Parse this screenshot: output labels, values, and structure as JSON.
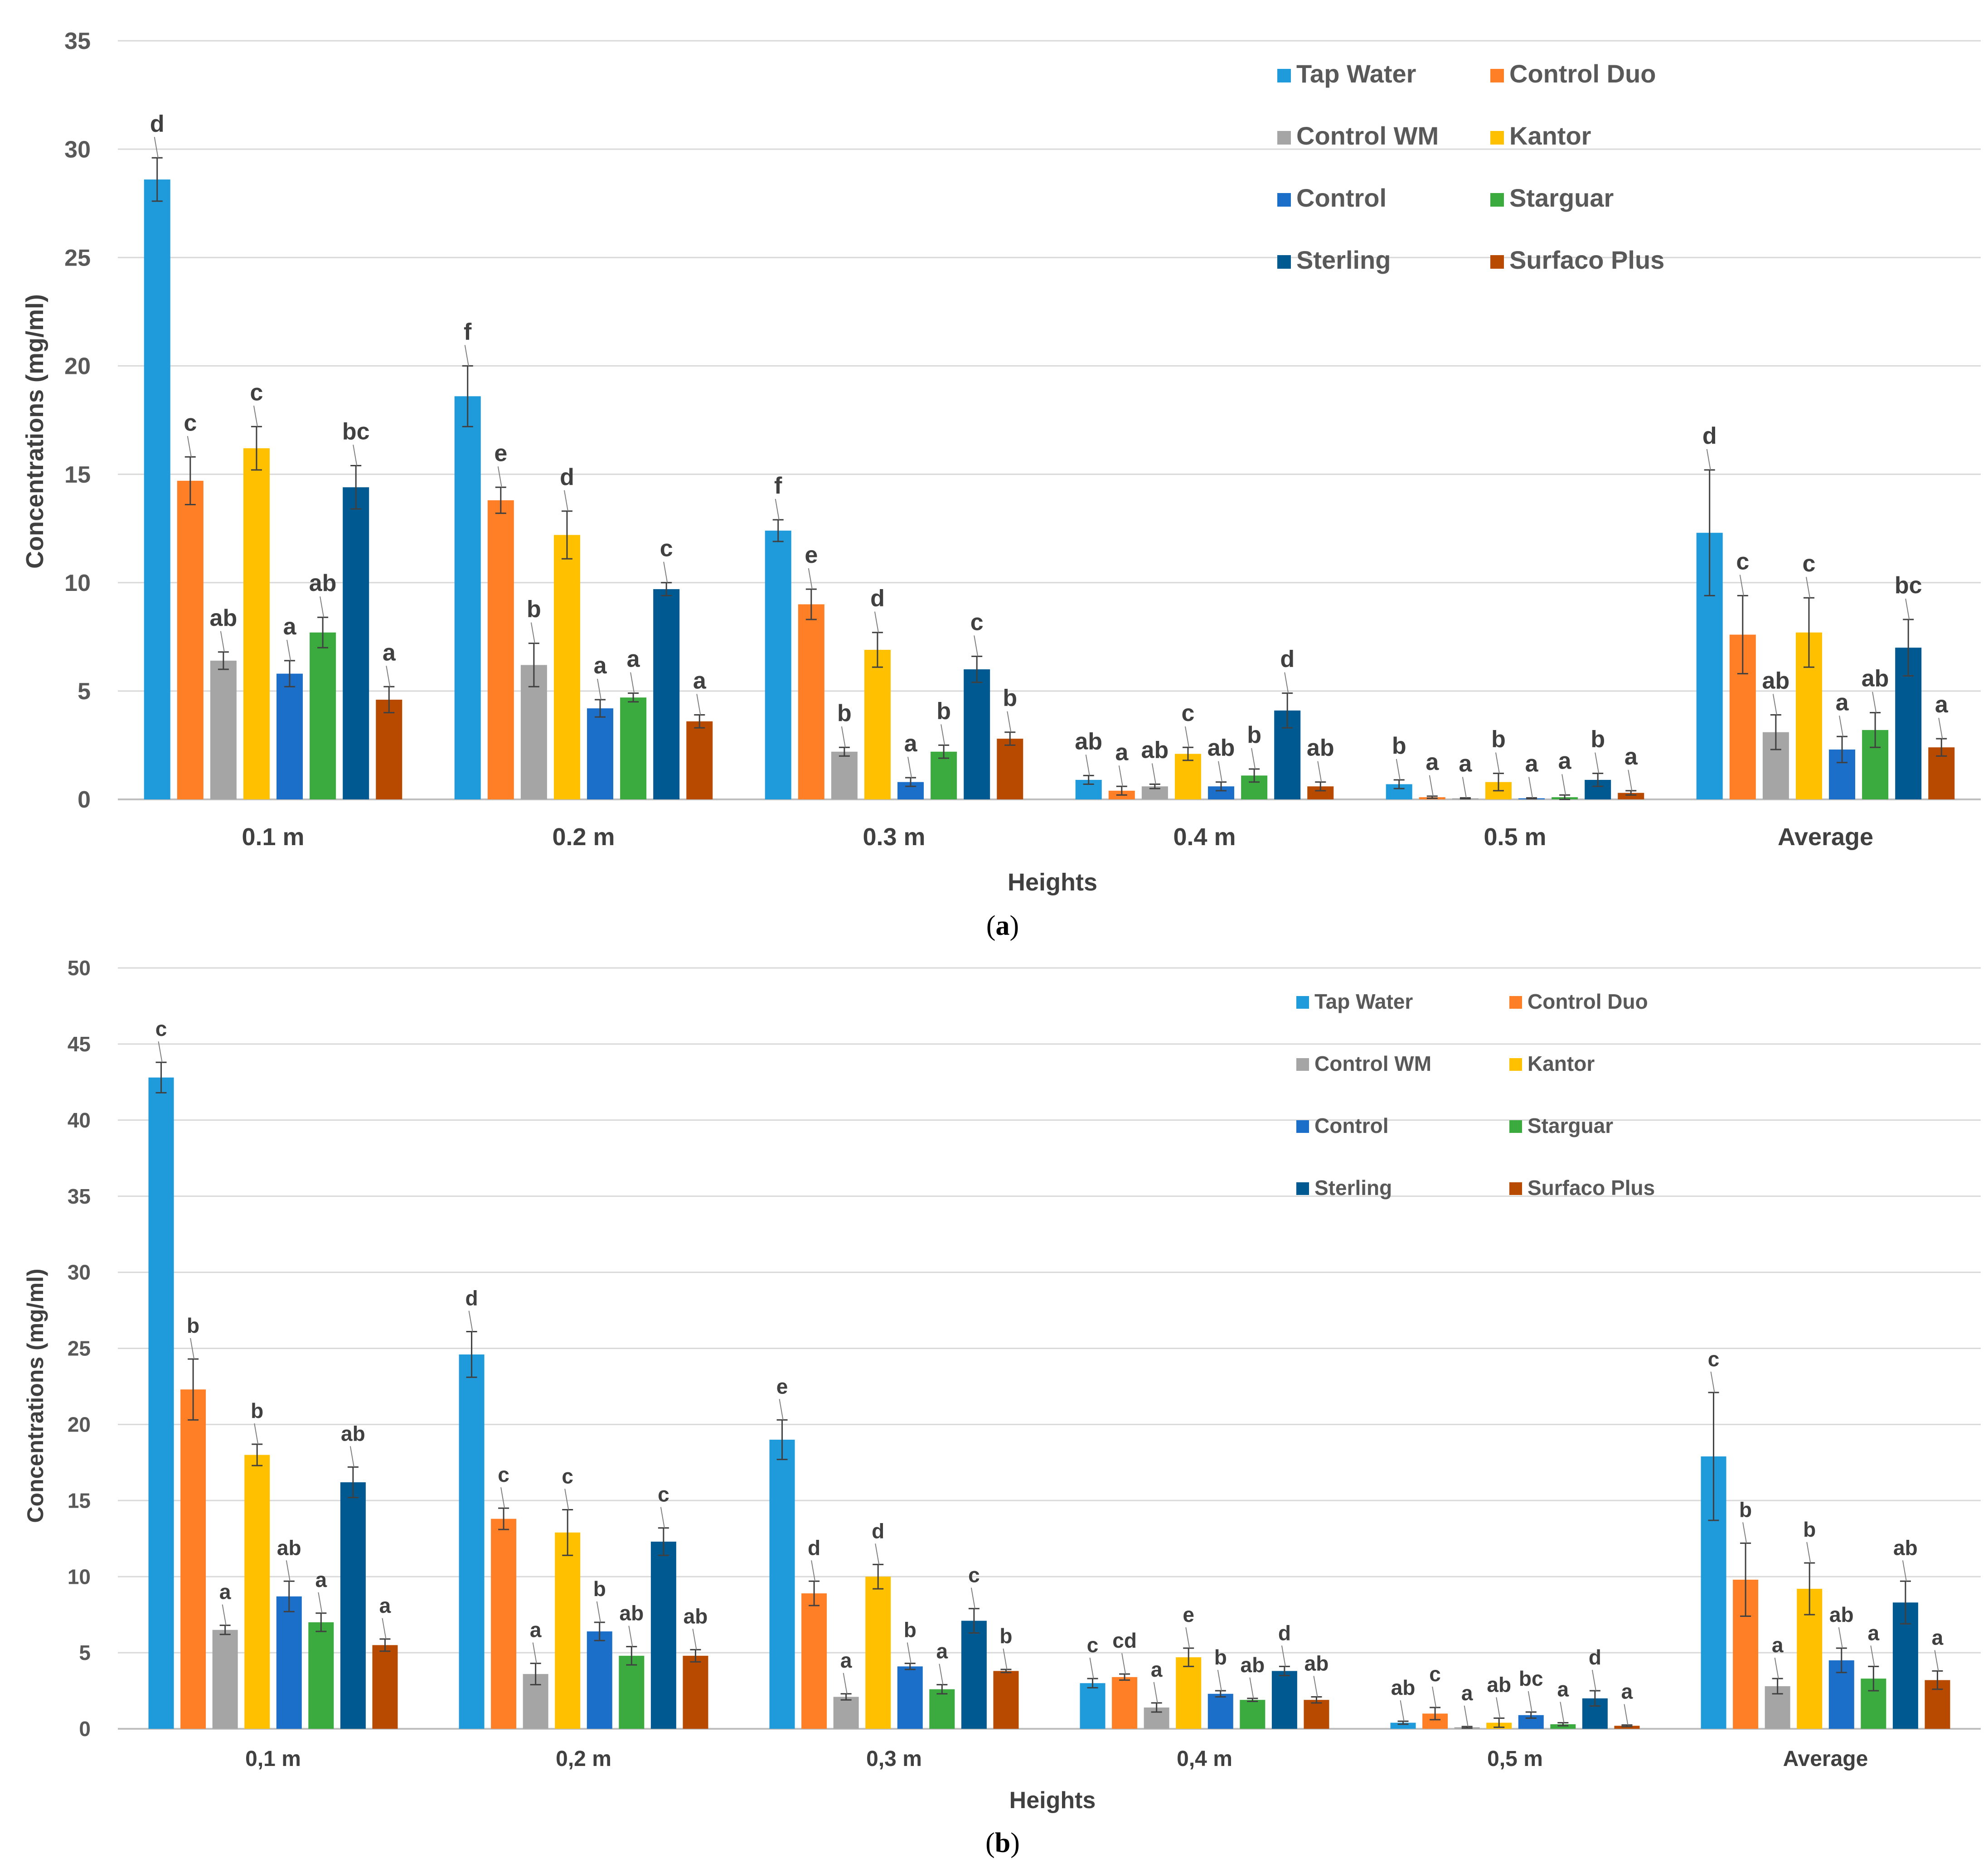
{
  "colors": {
    "Tap Water": "#1F9BDB",
    "Control Duo": "#FF7F27",
    "Control WM": "#A5A5A5",
    "Kantor": "#FFC000",
    "Control": "#1B6FC9",
    "Starguar": "#3BAA3F",
    "Sterling": "#005A91",
    "Surfaco Plus": "#B84A00",
    "grid": "#D9D9D9",
    "axis": "#BFBFBF",
    "errorbar": "#404040"
  },
  "chart_data": [
    {
      "id": "a",
      "type": "bar",
      "panel_label": "a",
      "title": "",
      "xlabel": "Heights",
      "ylabel": "Concentrations  (mg/ml)",
      "ylim": [
        0,
        35
      ],
      "yticks": [
        0,
        5,
        10,
        15,
        20,
        25,
        30,
        35
      ],
      "categories": [
        "0.1 m",
        "0.2 m",
        "0.3 m",
        "0.4 m",
        "0.5 m",
        "Average"
      ],
      "series": [
        {
          "name": "Tap Water",
          "values": [
            28.6,
            18.6,
            12.4,
            0.9,
            0.7,
            12.3
          ],
          "errors": [
            1.0,
            1.4,
            0.5,
            0.2,
            0.2,
            2.9
          ],
          "letters": [
            "d",
            "f",
            "f",
            "ab",
            "b",
            "d"
          ]
        },
        {
          "name": "Control Duo",
          "values": [
            14.7,
            13.8,
            9.0,
            0.4,
            0.1,
            7.6
          ],
          "errors": [
            1.1,
            0.6,
            0.7,
            0.2,
            0.05,
            1.8
          ],
          "letters": [
            "c",
            "e",
            "e",
            "a",
            "a",
            "c"
          ]
        },
        {
          "name": "Control WM",
          "values": [
            6.4,
            6.2,
            2.2,
            0.6,
            0.05,
            3.1
          ],
          "errors": [
            0.4,
            1.0,
            0.2,
            0.1,
            0.02,
            0.8
          ],
          "letters": [
            "ab",
            "b",
            "b",
            "ab",
            "a",
            "ab"
          ]
        },
        {
          "name": "Kantor",
          "values": [
            16.2,
            12.2,
            6.9,
            2.1,
            0.8,
            7.7
          ],
          "errors": [
            1.0,
            1.1,
            0.8,
            0.3,
            0.4,
            1.6
          ],
          "letters": [
            "c",
            "d",
            "d",
            "c",
            "b",
            "c"
          ]
        },
        {
          "name": "Control",
          "values": [
            5.8,
            4.2,
            0.8,
            0.6,
            0.05,
            2.3
          ],
          "errors": [
            0.6,
            0.4,
            0.2,
            0.2,
            0.02,
            0.6
          ],
          "letters": [
            "a",
            "a",
            "a",
            "ab",
            "a",
            "a"
          ]
        },
        {
          "name": "Starguar",
          "values": [
            7.7,
            4.7,
            2.2,
            1.1,
            0.1,
            3.2
          ],
          "errors": [
            0.7,
            0.2,
            0.3,
            0.3,
            0.1,
            0.8
          ],
          "letters": [
            "ab",
            "a",
            "b",
            "b",
            "a",
            "ab"
          ]
        },
        {
          "name": "Sterling",
          "values": [
            14.4,
            9.7,
            6.0,
            4.1,
            0.9,
            7.0
          ],
          "errors": [
            1.0,
            0.3,
            0.6,
            0.8,
            0.3,
            1.3
          ],
          "letters": [
            "bc",
            "c",
            "c",
            "d",
            "b",
            "bc"
          ]
        },
        {
          "name": "Surfaco Plus",
          "values": [
            4.6,
            3.6,
            2.8,
            0.6,
            0.3,
            2.4
          ],
          "errors": [
            0.6,
            0.3,
            0.3,
            0.2,
            0.1,
            0.4
          ],
          "letters": [
            "a",
            "a",
            "b",
            "ab",
            "a",
            "a"
          ]
        }
      ],
      "legend": [
        "Tap Water",
        "Control Duo",
        "Control WM",
        "Kantor",
        "Control",
        "Starguar",
        "Sterling",
        "Surfaco Plus"
      ],
      "legend_position": "top-right",
      "grid": true
    },
    {
      "id": "b",
      "type": "bar",
      "panel_label": "b",
      "title": "",
      "xlabel": "Heights",
      "ylabel": "Concentrations  (mg/ml)",
      "ylim": [
        0,
        50
      ],
      "yticks": [
        0,
        5,
        10,
        15,
        20,
        25,
        30,
        35,
        40,
        45,
        50
      ],
      "categories": [
        "0,1 m",
        "0,2 m",
        "0,3 m",
        "0,4 m",
        "0,5 m",
        "Average"
      ],
      "series": [
        {
          "name": "Tap Water",
          "values": [
            42.8,
            24.6,
            19.0,
            3.0,
            0.4,
            17.9
          ],
          "errors": [
            1.0,
            1.5,
            1.3,
            0.3,
            0.1,
            4.2
          ],
          "letters": [
            "c",
            "d",
            "e",
            "c",
            "ab",
            "c"
          ]
        },
        {
          "name": "Control Duo",
          "values": [
            22.3,
            13.8,
            8.9,
            3.4,
            1.0,
            9.8
          ],
          "errors": [
            2.0,
            0.7,
            0.8,
            0.2,
            0.4,
            2.4
          ],
          "letters": [
            "b",
            "c",
            "d",
            "cd",
            "c",
            "b"
          ]
        },
        {
          "name": "Control WM",
          "values": [
            6.5,
            3.6,
            2.1,
            1.4,
            0.1,
            2.8
          ],
          "errors": [
            0.3,
            0.7,
            0.2,
            0.3,
            0.05,
            0.5
          ],
          "letters": [
            "a",
            "a",
            "a",
            "a",
            "a",
            "a"
          ]
        },
        {
          "name": "Kantor",
          "values": [
            18.0,
            12.9,
            10.0,
            4.7,
            0.4,
            9.2
          ],
          "errors": [
            0.7,
            1.5,
            0.8,
            0.6,
            0.3,
            1.7
          ],
          "letters": [
            "b",
            "c",
            "d",
            "e",
            "ab",
            "b"
          ]
        },
        {
          "name": "Control",
          "values": [
            8.7,
            6.4,
            4.1,
            2.3,
            0.9,
            4.5
          ],
          "errors": [
            1.0,
            0.6,
            0.2,
            0.2,
            0.2,
            0.8
          ],
          "letters": [
            "ab",
            "b",
            "b",
            "b",
            "bc",
            "ab"
          ]
        },
        {
          "name": "Starguar",
          "values": [
            7.0,
            4.8,
            2.6,
            1.9,
            0.3,
            3.3
          ],
          "errors": [
            0.6,
            0.6,
            0.3,
            0.1,
            0.1,
            0.8
          ],
          "letters": [
            "a",
            "ab",
            "a",
            "ab",
            "a",
            "a"
          ]
        },
        {
          "name": "Sterling",
          "values": [
            16.2,
            12.3,
            7.1,
            3.8,
            2.0,
            8.3
          ],
          "errors": [
            1.0,
            0.9,
            0.8,
            0.3,
            0.5,
            1.4
          ],
          "letters": [
            "ab",
            "c",
            "c",
            "d",
            "d",
            "ab"
          ]
        },
        {
          "name": "Surfaco Plus",
          "values": [
            5.5,
            4.8,
            3.8,
            1.9,
            0.2,
            3.2
          ],
          "errors": [
            0.4,
            0.4,
            0.1,
            0.2,
            0.05,
            0.6
          ],
          "letters": [
            "a",
            "ab",
            "b",
            "ab",
            "a",
            "a"
          ]
        }
      ],
      "legend": [
        "Tap Water",
        "Control Duo",
        "Control WM",
        "Kantor",
        "Control",
        "Starguar",
        "Sterling",
        "Surfaco Plus"
      ],
      "legend_position": "top-right",
      "grid": true
    }
  ]
}
